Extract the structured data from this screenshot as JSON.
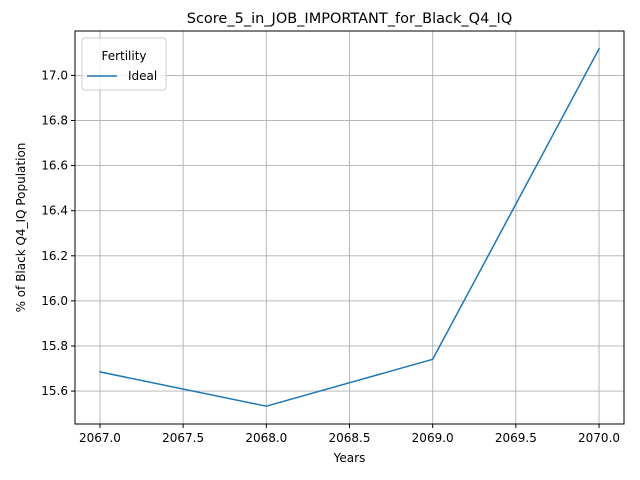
{
  "chart_data": {
    "type": "line",
    "title": "Score_5_in_JOB_IMPORTANT_for_Black_Q4_IQ",
    "xlabel": "Years",
    "ylabel": "% of Black Q4_IQ Population",
    "x": [
      2067,
      2068,
      2069,
      2070
    ],
    "series": [
      {
        "name": "Ideal",
        "values": [
          15.685,
          15.533,
          15.741,
          17.118
        ],
        "color": "#1f77b4"
      }
    ],
    "xlim": [
      2066.85,
      2070.15
    ],
    "ylim": [
      15.454,
      17.197
    ],
    "xticks": [
      2067.0,
      2067.5,
      2068.0,
      2068.5,
      2069.0,
      2069.5,
      2070.0
    ],
    "xtick_labels": [
      "2067.0",
      "2067.5",
      "2068.0",
      "2068.5",
      "2069.0",
      "2069.5",
      "2070.0"
    ],
    "yticks": [
      15.6,
      15.8,
      16.0,
      16.2,
      16.4,
      16.6,
      16.8,
      17.0
    ],
    "ytick_labels": [
      "15.6",
      "15.8",
      "16.0",
      "16.2",
      "16.4",
      "16.6",
      "16.8",
      "17.0"
    ],
    "grid": true,
    "legend": {
      "title": "Fertility",
      "placement": "upper-left"
    }
  }
}
